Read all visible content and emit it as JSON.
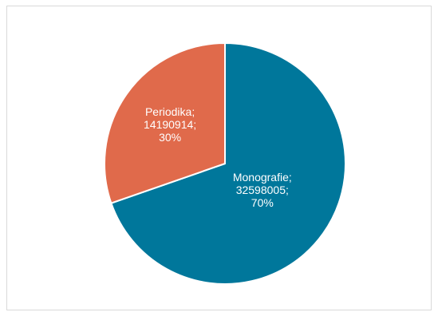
{
  "chart_data": {
    "type": "pie",
    "title": "",
    "slices": [
      {
        "name": "Monografie",
        "value": 32598005,
        "percent": "70%",
        "color": "#00779b",
        "label_lines": [
          "Monografie;",
          "32598005;",
          "70%"
        ]
      },
      {
        "name": "Periodika",
        "value": 14190914,
        "percent": "30%",
        "color": "#e06a4b",
        "label_lines": [
          "Periodika;",
          "14190914;",
          "30%"
        ]
      }
    ],
    "start_angle": "12 o'clock",
    "direction": "clockwise",
    "legend": "none",
    "labels": "inside slices"
  }
}
